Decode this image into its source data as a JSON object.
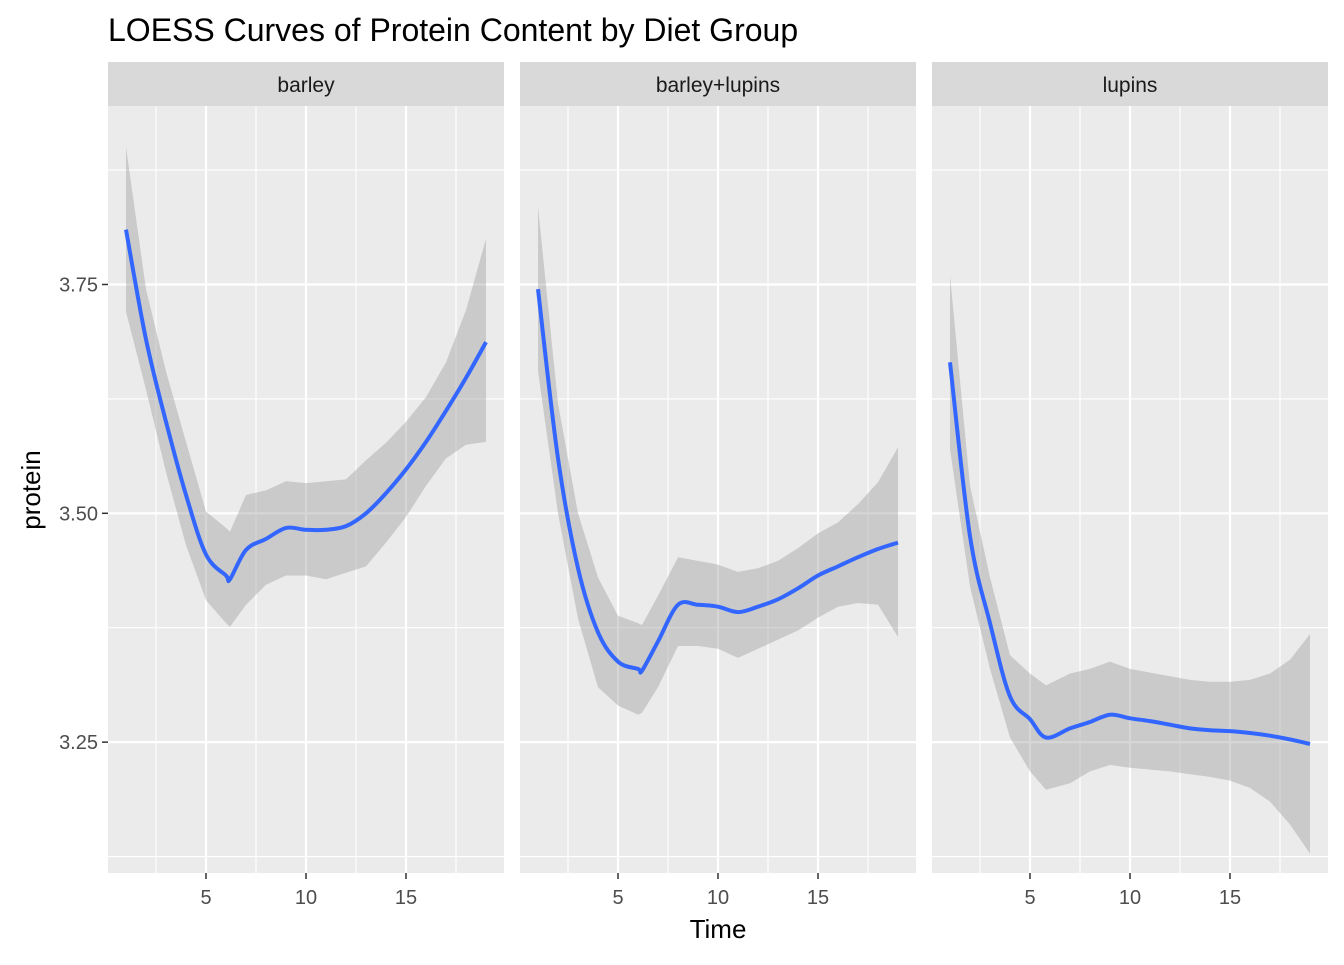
{
  "chart_data": {
    "type": "line",
    "title": "LOESS Curves of Protein Content by Diet Group",
    "xlabel": "Time",
    "ylabel": "protein",
    "xlim": [
      0.1,
      19.9
    ],
    "ylim": [
      3.107,
      3.945
    ],
    "x_ticks": [
      5,
      10,
      15
    ],
    "y_ticks": [
      3.25,
      3.5,
      3.75
    ],
    "y_tick_labels": [
      "3.25",
      "3.50",
      "3.75"
    ],
    "grid": true,
    "line_color": "#3366FF",
    "band_color": "#999999",
    "panel_background": "#EBEBEB",
    "strip_background": "#D9D9D9",
    "facets": [
      {
        "name": "barley",
        "x": [
          1,
          2,
          3,
          4,
          5,
          6,
          6.2,
          7,
          8,
          9,
          10,
          11,
          12,
          13,
          14,
          15,
          16,
          17,
          18,
          19
        ],
        "y": [
          3.81,
          3.69,
          3.6,
          3.52,
          3.455,
          3.432,
          3.428,
          3.46,
          3.472,
          3.484,
          3.482,
          3.482,
          3.486,
          3.5,
          3.522,
          3.548,
          3.578,
          3.612,
          3.648,
          3.687
        ],
        "lower": [
          3.72,
          3.635,
          3.545,
          3.465,
          3.405,
          3.38,
          3.376,
          3.4,
          3.422,
          3.432,
          3.432,
          3.428,
          3.435,
          3.442,
          3.468,
          3.496,
          3.53,
          3.56,
          3.575,
          3.578
        ],
        "upper": [
          3.9,
          3.745,
          3.655,
          3.578,
          3.502,
          3.484,
          3.48,
          3.52,
          3.525,
          3.535,
          3.533,
          3.535,
          3.537,
          3.558,
          3.577,
          3.6,
          3.627,
          3.665,
          3.722,
          3.8
        ]
      },
      {
        "name": "barley+lupins",
        "x": [
          1,
          2,
          3,
          4,
          5,
          6,
          6.2,
          7,
          8,
          9,
          10,
          11,
          12,
          13,
          14,
          15,
          16,
          17,
          18,
          19
        ],
        "y": [
          3.745,
          3.56,
          3.44,
          3.37,
          3.338,
          3.33,
          3.328,
          3.36,
          3.4,
          3.4,
          3.398,
          3.392,
          3.398,
          3.406,
          3.418,
          3.432,
          3.442,
          3.452,
          3.461,
          3.468
        ],
        "lower": [
          3.655,
          3.5,
          3.385,
          3.31,
          3.29,
          3.28,
          3.282,
          3.31,
          3.355,
          3.355,
          3.352,
          3.342,
          3.352,
          3.362,
          3.372,
          3.386,
          3.398,
          3.402,
          3.4,
          3.365
        ],
        "upper": [
          3.835,
          3.62,
          3.5,
          3.43,
          3.388,
          3.38,
          3.378,
          3.41,
          3.452,
          3.448,
          3.444,
          3.436,
          3.44,
          3.448,
          3.462,
          3.478,
          3.49,
          3.51,
          3.534,
          3.572
        ]
      },
      {
        "name": "lupins",
        "x": [
          1,
          2,
          3,
          4,
          5,
          5.8,
          7,
          8,
          9,
          10,
          11,
          12,
          13,
          14,
          15,
          16,
          17,
          18,
          19
        ],
        "y": [
          3.665,
          3.475,
          3.38,
          3.3,
          3.275,
          3.255,
          3.265,
          3.272,
          3.28,
          3.276,
          3.273,
          3.269,
          3.265,
          3.263,
          3.262,
          3.26,
          3.257,
          3.253,
          3.248
        ],
        "lower": [
          3.57,
          3.42,
          3.33,
          3.255,
          3.218,
          3.198,
          3.205,
          3.218,
          3.225,
          3.222,
          3.22,
          3.218,
          3.215,
          3.212,
          3.208,
          3.2,
          3.185,
          3.16,
          3.128
        ],
        "upper": [
          3.76,
          3.53,
          3.43,
          3.345,
          3.325,
          3.312,
          3.325,
          3.33,
          3.338,
          3.33,
          3.326,
          3.322,
          3.318,
          3.316,
          3.316,
          3.318,
          3.325,
          3.34,
          3.368
        ]
      }
    ]
  }
}
